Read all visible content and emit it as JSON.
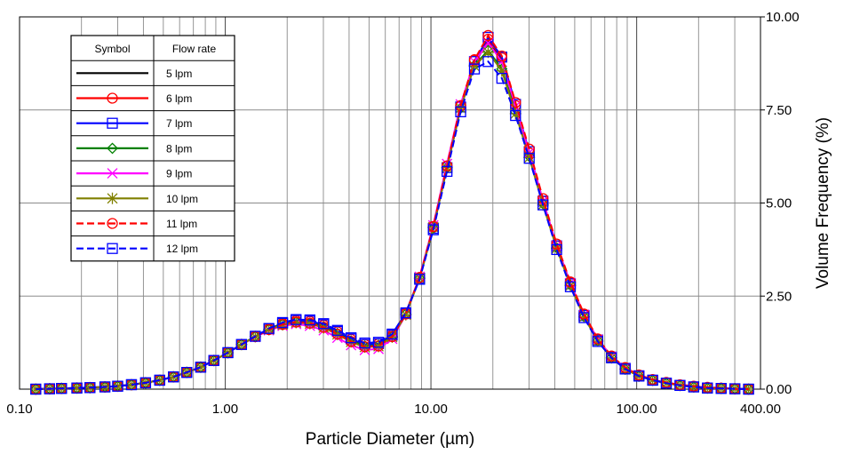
{
  "chart_data": {
    "type": "line",
    "title": "",
    "xlabel": "Particle Diameter (µm)",
    "ylabel": "Volume Frequency (%)",
    "xscale": "log",
    "xlim": [
      0.1,
      400
    ],
    "ylim": [
      0,
      10
    ],
    "x_tick_labels": [
      "0.10",
      "1.00",
      "10.00",
      "100.00",
      "400.00"
    ],
    "x_tick_values": [
      0.1,
      1,
      10,
      100,
      400
    ],
    "y_tick_labels": [
      "0.00",
      "2.50",
      "5.00",
      "7.50",
      "10.00"
    ],
    "y_tick_values": [
      0,
      2.5,
      5,
      7.5,
      10
    ],
    "y_axis_side": "right",
    "grid": true,
    "legend_position": "top-left",
    "legend_headers": [
      "Symbol",
      "Flow rate"
    ],
    "x": [
      0.12,
      0.14,
      0.16,
      0.19,
      0.22,
      0.26,
      0.3,
      0.35,
      0.41,
      0.48,
      0.56,
      0.65,
      0.76,
      0.88,
      1.03,
      1.2,
      1.4,
      1.63,
      1.9,
      2.21,
      2.58,
      3.01,
      3.51,
      4.09,
      4.77,
      5.56,
      6.48,
      7.55,
      8.81,
      10.27,
      11.97,
      13.95,
      16.27,
      18.97,
      22.11,
      25.78,
      30.05,
      35.04,
      40.85,
      47.62,
      55.52,
      64.72,
      75.46,
      87.97,
      102.6,
      119.6,
      139.4,
      162.5,
      189.5,
      220.9,
      257.5,
      300.2,
      350.0
    ],
    "series": [
      {
        "name": "5 lpm",
        "color": "#000000",
        "dashed": false,
        "marker": "none",
        "values": [
          0,
          0.01,
          0.02,
          0.03,
          0.04,
          0.06,
          0.08,
          0.12,
          0.17,
          0.24,
          0.33,
          0.45,
          0.59,
          0.77,
          0.98,
          1.2,
          1.42,
          1.62,
          1.76,
          1.82,
          1.8,
          1.7,
          1.52,
          1.33,
          1.2,
          1.22,
          1.46,
          2.05,
          3.0,
          4.35,
          5.95,
          7.55,
          8.75,
          9.35,
          8.85,
          7.55,
          6.3,
          5.0,
          3.8,
          2.8,
          1.95,
          1.3,
          0.85,
          0.55,
          0.36,
          0.25,
          0.17,
          0.11,
          0.07,
          0.04,
          0.02,
          0.01,
          0
        ]
      },
      {
        "name": "6 lpm",
        "color": "#ff0000",
        "dashed": false,
        "marker": "circle",
        "values": [
          0,
          0.01,
          0.02,
          0.03,
          0.04,
          0.06,
          0.08,
          0.12,
          0.17,
          0.24,
          0.33,
          0.45,
          0.59,
          0.77,
          0.98,
          1.2,
          1.42,
          1.62,
          1.77,
          1.84,
          1.82,
          1.72,
          1.54,
          1.34,
          1.2,
          1.22,
          1.45,
          2.05,
          3.0,
          4.35,
          5.98,
          7.6,
          8.82,
          9.4,
          8.9,
          7.62,
          6.35,
          5.05,
          3.85,
          2.85,
          2.0,
          1.33,
          0.88,
          0.57,
          0.37,
          0.25,
          0.17,
          0.11,
          0.07,
          0.04,
          0.02,
          0.01,
          0
        ]
      },
      {
        "name": "7 lpm",
        "color": "#0000ff",
        "dashed": false,
        "marker": "square",
        "values": [
          0,
          0.01,
          0.02,
          0.03,
          0.04,
          0.06,
          0.08,
          0.12,
          0.17,
          0.24,
          0.33,
          0.45,
          0.59,
          0.77,
          0.98,
          1.2,
          1.42,
          1.62,
          1.77,
          1.85,
          1.83,
          1.73,
          1.55,
          1.35,
          1.2,
          1.22,
          1.45,
          2.03,
          2.98,
          4.32,
          5.95,
          7.58,
          8.8,
          9.45,
          8.92,
          7.65,
          6.38,
          5.05,
          3.85,
          2.83,
          1.98,
          1.32,
          0.86,
          0.56,
          0.36,
          0.24,
          0.16,
          0.1,
          0.06,
          0.03,
          0.02,
          0.01,
          0
        ]
      },
      {
        "name": "8 lpm",
        "color": "#008000",
        "dashed": false,
        "marker": "diamond",
        "values": [
          0,
          0.01,
          0.02,
          0.03,
          0.04,
          0.06,
          0.08,
          0.12,
          0.17,
          0.24,
          0.33,
          0.45,
          0.59,
          0.77,
          0.98,
          1.2,
          1.42,
          1.61,
          1.75,
          1.81,
          1.78,
          1.68,
          1.5,
          1.3,
          1.16,
          1.18,
          1.42,
          2.02,
          2.98,
          4.33,
          5.95,
          7.55,
          8.7,
          9.1,
          8.6,
          7.45,
          6.25,
          4.98,
          3.8,
          2.8,
          1.95,
          1.3,
          0.85,
          0.54,
          0.35,
          0.24,
          0.16,
          0.1,
          0.06,
          0.03,
          0.02,
          0.01,
          0
        ]
      },
      {
        "name": "9 lpm",
        "color": "#ff00ff",
        "dashed": false,
        "marker": "x",
        "values": [
          0,
          0.01,
          0.02,
          0.03,
          0.04,
          0.06,
          0.08,
          0.12,
          0.17,
          0.24,
          0.33,
          0.45,
          0.59,
          0.77,
          0.98,
          1.2,
          1.4,
          1.58,
          1.7,
          1.75,
          1.7,
          1.58,
          1.38,
          1.18,
          1.05,
          1.08,
          1.35,
          2.0,
          3.02,
          4.4,
          6.05,
          7.65,
          8.8,
          9.3,
          8.8,
          7.6,
          6.35,
          5.05,
          3.85,
          2.85,
          2.0,
          1.33,
          0.87,
          0.56,
          0.36,
          0.24,
          0.16,
          0.1,
          0.06,
          0.03,
          0.02,
          0.01,
          0
        ]
      },
      {
        "name": "10 lpm",
        "color": "#808000",
        "dashed": false,
        "marker": "asterisk",
        "values": [
          0,
          0.01,
          0.02,
          0.03,
          0.04,
          0.06,
          0.08,
          0.12,
          0.17,
          0.24,
          0.33,
          0.45,
          0.59,
          0.77,
          0.98,
          1.2,
          1.41,
          1.6,
          1.73,
          1.79,
          1.76,
          1.65,
          1.47,
          1.27,
          1.13,
          1.15,
          1.4,
          2.0,
          2.98,
          4.35,
          5.95,
          7.55,
          8.68,
          9.05,
          8.55,
          7.4,
          6.22,
          4.95,
          3.78,
          2.78,
          1.94,
          1.29,
          0.84,
          0.54,
          0.35,
          0.24,
          0.16,
          0.1,
          0.06,
          0.03,
          0.02,
          0.01,
          0
        ]
      },
      {
        "name": "11 lpm",
        "color": "#ff0000",
        "dashed": true,
        "marker": "circle",
        "values": [
          0,
          0.01,
          0.02,
          0.03,
          0.04,
          0.06,
          0.08,
          0.12,
          0.17,
          0.24,
          0.33,
          0.45,
          0.59,
          0.77,
          0.98,
          1.2,
          1.41,
          1.6,
          1.74,
          1.8,
          1.77,
          1.66,
          1.48,
          1.28,
          1.14,
          1.16,
          1.41,
          2.02,
          3.0,
          4.37,
          6.0,
          7.62,
          8.85,
          9.5,
          8.95,
          7.7,
          6.45,
          5.12,
          3.9,
          2.88,
          2.02,
          1.35,
          0.89,
          0.58,
          0.38,
          0.26,
          0.18,
          0.12,
          0.08,
          0.05,
          0.03,
          0.01,
          0
        ]
      },
      {
        "name": "12 lpm",
        "color": "#0000ff",
        "dashed": true,
        "marker": "square",
        "values": [
          0,
          0.01,
          0.02,
          0.03,
          0.04,
          0.06,
          0.08,
          0.12,
          0.17,
          0.24,
          0.33,
          0.45,
          0.59,
          0.77,
          0.98,
          1.2,
          1.42,
          1.63,
          1.79,
          1.87,
          1.86,
          1.76,
          1.58,
          1.38,
          1.24,
          1.26,
          1.48,
          2.05,
          2.95,
          4.28,
          5.85,
          7.45,
          8.6,
          8.8,
          8.35,
          7.35,
          6.2,
          4.95,
          3.75,
          2.75,
          1.92,
          1.28,
          0.84,
          0.54,
          0.35,
          0.24,
          0.16,
          0.1,
          0.06,
          0.03,
          0.02,
          0.01,
          0
        ]
      }
    ]
  }
}
